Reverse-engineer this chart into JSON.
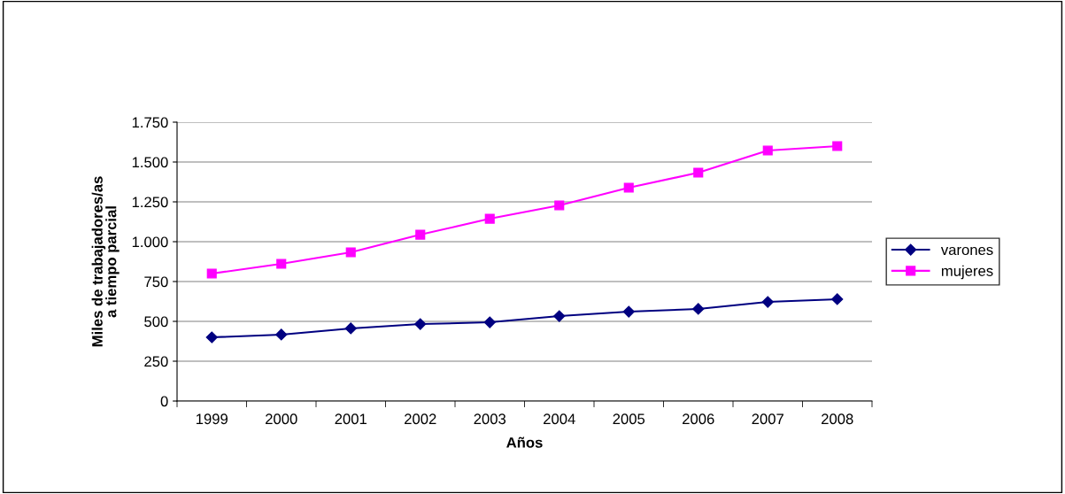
{
  "chart_data": {
    "type": "line",
    "xlabel": "Años",
    "ylabel": "Miles de trabajadores/as\na tiempo parcial",
    "categories": [
      "1999",
      "2000",
      "2001",
      "2002",
      "2003",
      "2004",
      "2005",
      "2006",
      "2007",
      "2008"
    ],
    "series": [
      {
        "name": "varones",
        "color": "#000080",
        "marker": "diamond",
        "values": [
          400,
          417,
          456,
          483,
          494,
          533,
          561,
          578,
          622,
          639
        ]
      },
      {
        "name": "mujeres",
        "color": "#ff00ff",
        "marker": "square",
        "values": [
          800,
          861,
          933,
          1044,
          1144,
          1228,
          1339,
          1433,
          1572,
          1600
        ]
      }
    ],
    "ylim": [
      0,
      1750
    ],
    "yticks": [
      0,
      250,
      500,
      750,
      {
        "value": 1000,
        "label": "1.000"
      },
      {
        "value": 1250,
        "label": "1.250"
      },
      {
        "value": 1500,
        "label": "1.500"
      },
      {
        "value": 1750,
        "label": "1.750"
      }
    ],
    "grid": "y",
    "legend": "right",
    "line_style": "solid"
  }
}
